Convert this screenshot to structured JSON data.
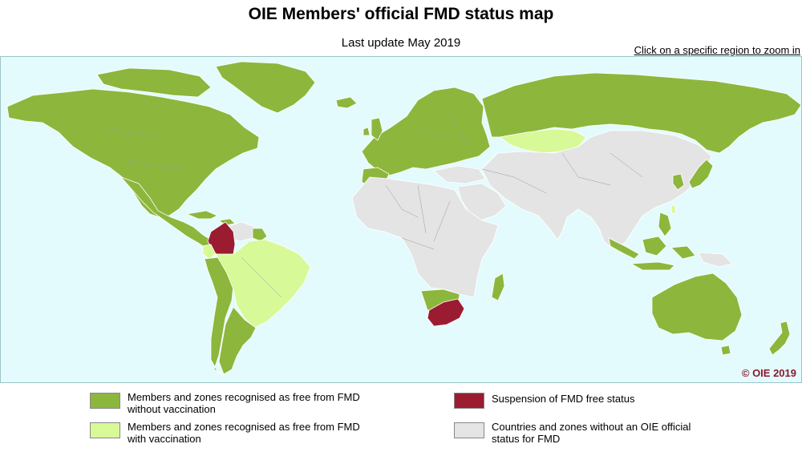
{
  "header": {
    "title": "OIE Members' official FMD status map",
    "subtitle": "Last update May 2019",
    "zoom_hint": "Click on a specific region to zoom in"
  },
  "map": {
    "copyright": "© OIE 2019",
    "colors": {
      "ocean": "#e4fbfd",
      "free_without_vaccination": "#8db63d",
      "free_with_vaccination": "#d8f998",
      "suspension": "#9b1c31",
      "no_status": "#e4e4e4"
    }
  },
  "legend": {
    "free_without_vaccination": {
      "line1": "Members and zones recognised as free from FMD",
      "line2": "without vaccination"
    },
    "free_with_vaccination": {
      "line1": "Members and zones recognised as free from FMD",
      "line2": "with vaccination"
    },
    "suspension": {
      "line1": "Suspension of FMD free status"
    },
    "no_status": {
      "line1": "Countries and zones without an OIE official",
      "line2": "status for FMD"
    }
  }
}
